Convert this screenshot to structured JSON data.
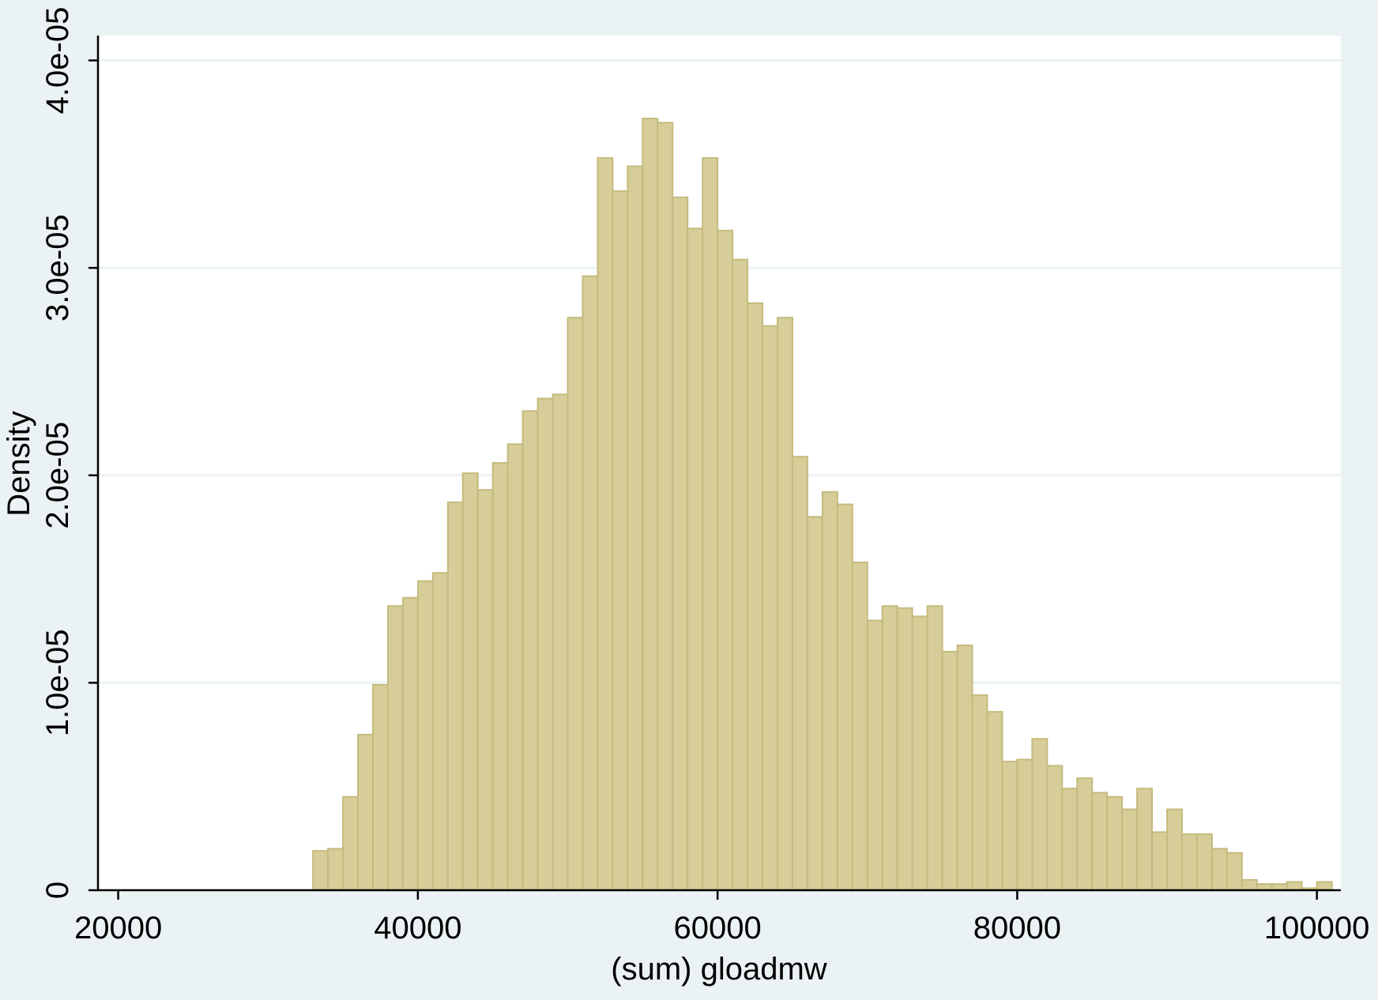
{
  "chart_data": {
    "type": "bar",
    "xlabel": "(sum) gloadmw",
    "ylabel": "Density",
    "xlim": [
      18650,
      101600
    ],
    "ylim": [
      0,
      4.12e-05
    ],
    "x_ticks": [
      {
        "value": 20000,
        "label": "20000"
      },
      {
        "value": 40000,
        "label": "40000"
      },
      {
        "value": 60000,
        "label": "60000"
      },
      {
        "value": 80000,
        "label": "80000"
      },
      {
        "value": 100000,
        "label": "100000"
      }
    ],
    "y_ticks": [
      {
        "value": 0,
        "label": "0"
      },
      {
        "value": 1e-05,
        "label": "1.0e-05"
      },
      {
        "value": 2e-05,
        "label": "2.0e-05"
      },
      {
        "value": 3e-05,
        "label": "3.0e-05"
      },
      {
        "value": 4e-05,
        "label": "4.0e-05"
      }
    ],
    "grid": true,
    "bin_start": 33000,
    "bin_width": 1000,
    "values": [
      1.9e-06,
      2e-06,
      4.5e-06,
      7.5e-06,
      9.9e-06,
      1.37e-05,
      1.41e-05,
      1.49e-05,
      1.53e-05,
      1.87e-05,
      2.01e-05,
      1.93e-05,
      2.06e-05,
      2.15e-05,
      2.31e-05,
      2.37e-05,
      2.39e-05,
      2.76e-05,
      2.96e-05,
      3.53e-05,
      3.37e-05,
      3.49e-05,
      3.72e-05,
      3.7e-05,
      3.34e-05,
      3.19e-05,
      3.53e-05,
      3.18e-05,
      3.04e-05,
      2.83e-05,
      2.72e-05,
      2.76e-05,
      2.09e-05,
      1.8e-05,
      1.92e-05,
      1.86e-05,
      1.58e-05,
      1.3e-05,
      1.37e-05,
      1.36e-05,
      1.32e-05,
      1.37e-05,
      1.15e-05,
      1.18e-05,
      9.4e-06,
      8.6e-06,
      6.2e-06,
      6.3e-06,
      7.3e-06,
      6e-06,
      4.9e-06,
      5.4e-06,
      4.7e-06,
      4.5e-06,
      3.9e-06,
      4.9e-06,
      2.8e-06,
      3.9e-06,
      2.7e-06,
      2.7e-06,
      2e-06,
      1.8e-06,
      5e-07,
      3e-07,
      3e-07,
      4e-07,
      1e-07,
      4e-07
    ],
    "colors": {
      "background": "#eaf2f3",
      "plot_background": "#ffffff",
      "bar_fill": "#d6cd98",
      "bar_stroke": "#c5bb7f",
      "grid": "#eaf2f3",
      "axis": "#000000"
    }
  }
}
